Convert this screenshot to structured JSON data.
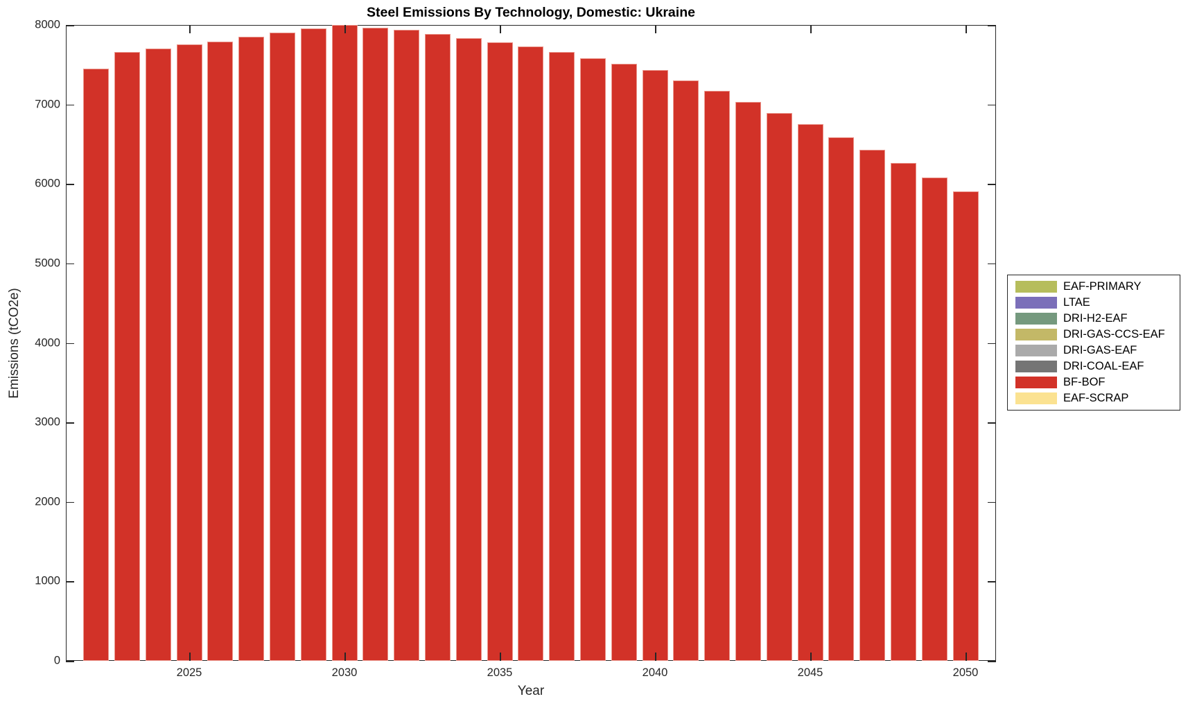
{
  "title": "Steel Emissions By Technology, Domestic: Ukraine",
  "chart_data": {
    "type": "bar",
    "title": "Steel Emissions By Technology, Domestic: Ukraine",
    "xlabel": "Year",
    "ylabel": "Emissions (tCO2e)",
    "x": [
      2022,
      2023,
      2024,
      2025,
      2026,
      2027,
      2028,
      2029,
      2030,
      2031,
      2032,
      2033,
      2034,
      2035,
      2036,
      2037,
      2038,
      2039,
      2040,
      2041,
      2042,
      2043,
      2044,
      2045,
      2046,
      2047,
      2048,
      2049,
      2050
    ],
    "series": [
      {
        "name": "BF-BOF",
        "color": "#d23228",
        "values": [
          7450,
          7660,
          7705,
          7755,
          7790,
          7850,
          7900,
          7955,
          8000,
          7965,
          7940,
          7885,
          7835,
          7785,
          7730,
          7660,
          7585,
          7515,
          7430,
          7305,
          7175,
          7030,
          6895,
          6750,
          6590,
          6430,
          6260,
          6085,
          5905
        ]
      }
    ],
    "ylim": [
      0,
      8000
    ],
    "yticks": [
      0,
      1000,
      2000,
      3000,
      4000,
      5000,
      6000,
      7000,
      8000
    ],
    "xticks": [
      2025,
      2030,
      2035,
      2040,
      2045,
      2050
    ],
    "grid": false,
    "axis_color": "#262626",
    "background": "#ffffff",
    "legend": {
      "position": "outside-right",
      "entries": [
        {
          "label": "EAF-PRIMARY",
          "color": "#b6bd5c"
        },
        {
          "label": "LTAE",
          "color": "#7b6fb9"
        },
        {
          "label": "DRI-H2-EAF",
          "color": "#75997e"
        },
        {
          "label": "DRI-GAS-CCS-EAF",
          "color": "#c3b867"
        },
        {
          "label": "DRI-GAS-EAF",
          "color": "#aaaaaa"
        },
        {
          "label": "DRI-COAL-EAF",
          "color": "#757575"
        },
        {
          "label": "BF-BOF",
          "color": "#d23228"
        },
        {
          "label": "EAF-SCRAP",
          "color": "#fbe291"
        }
      ]
    }
  }
}
